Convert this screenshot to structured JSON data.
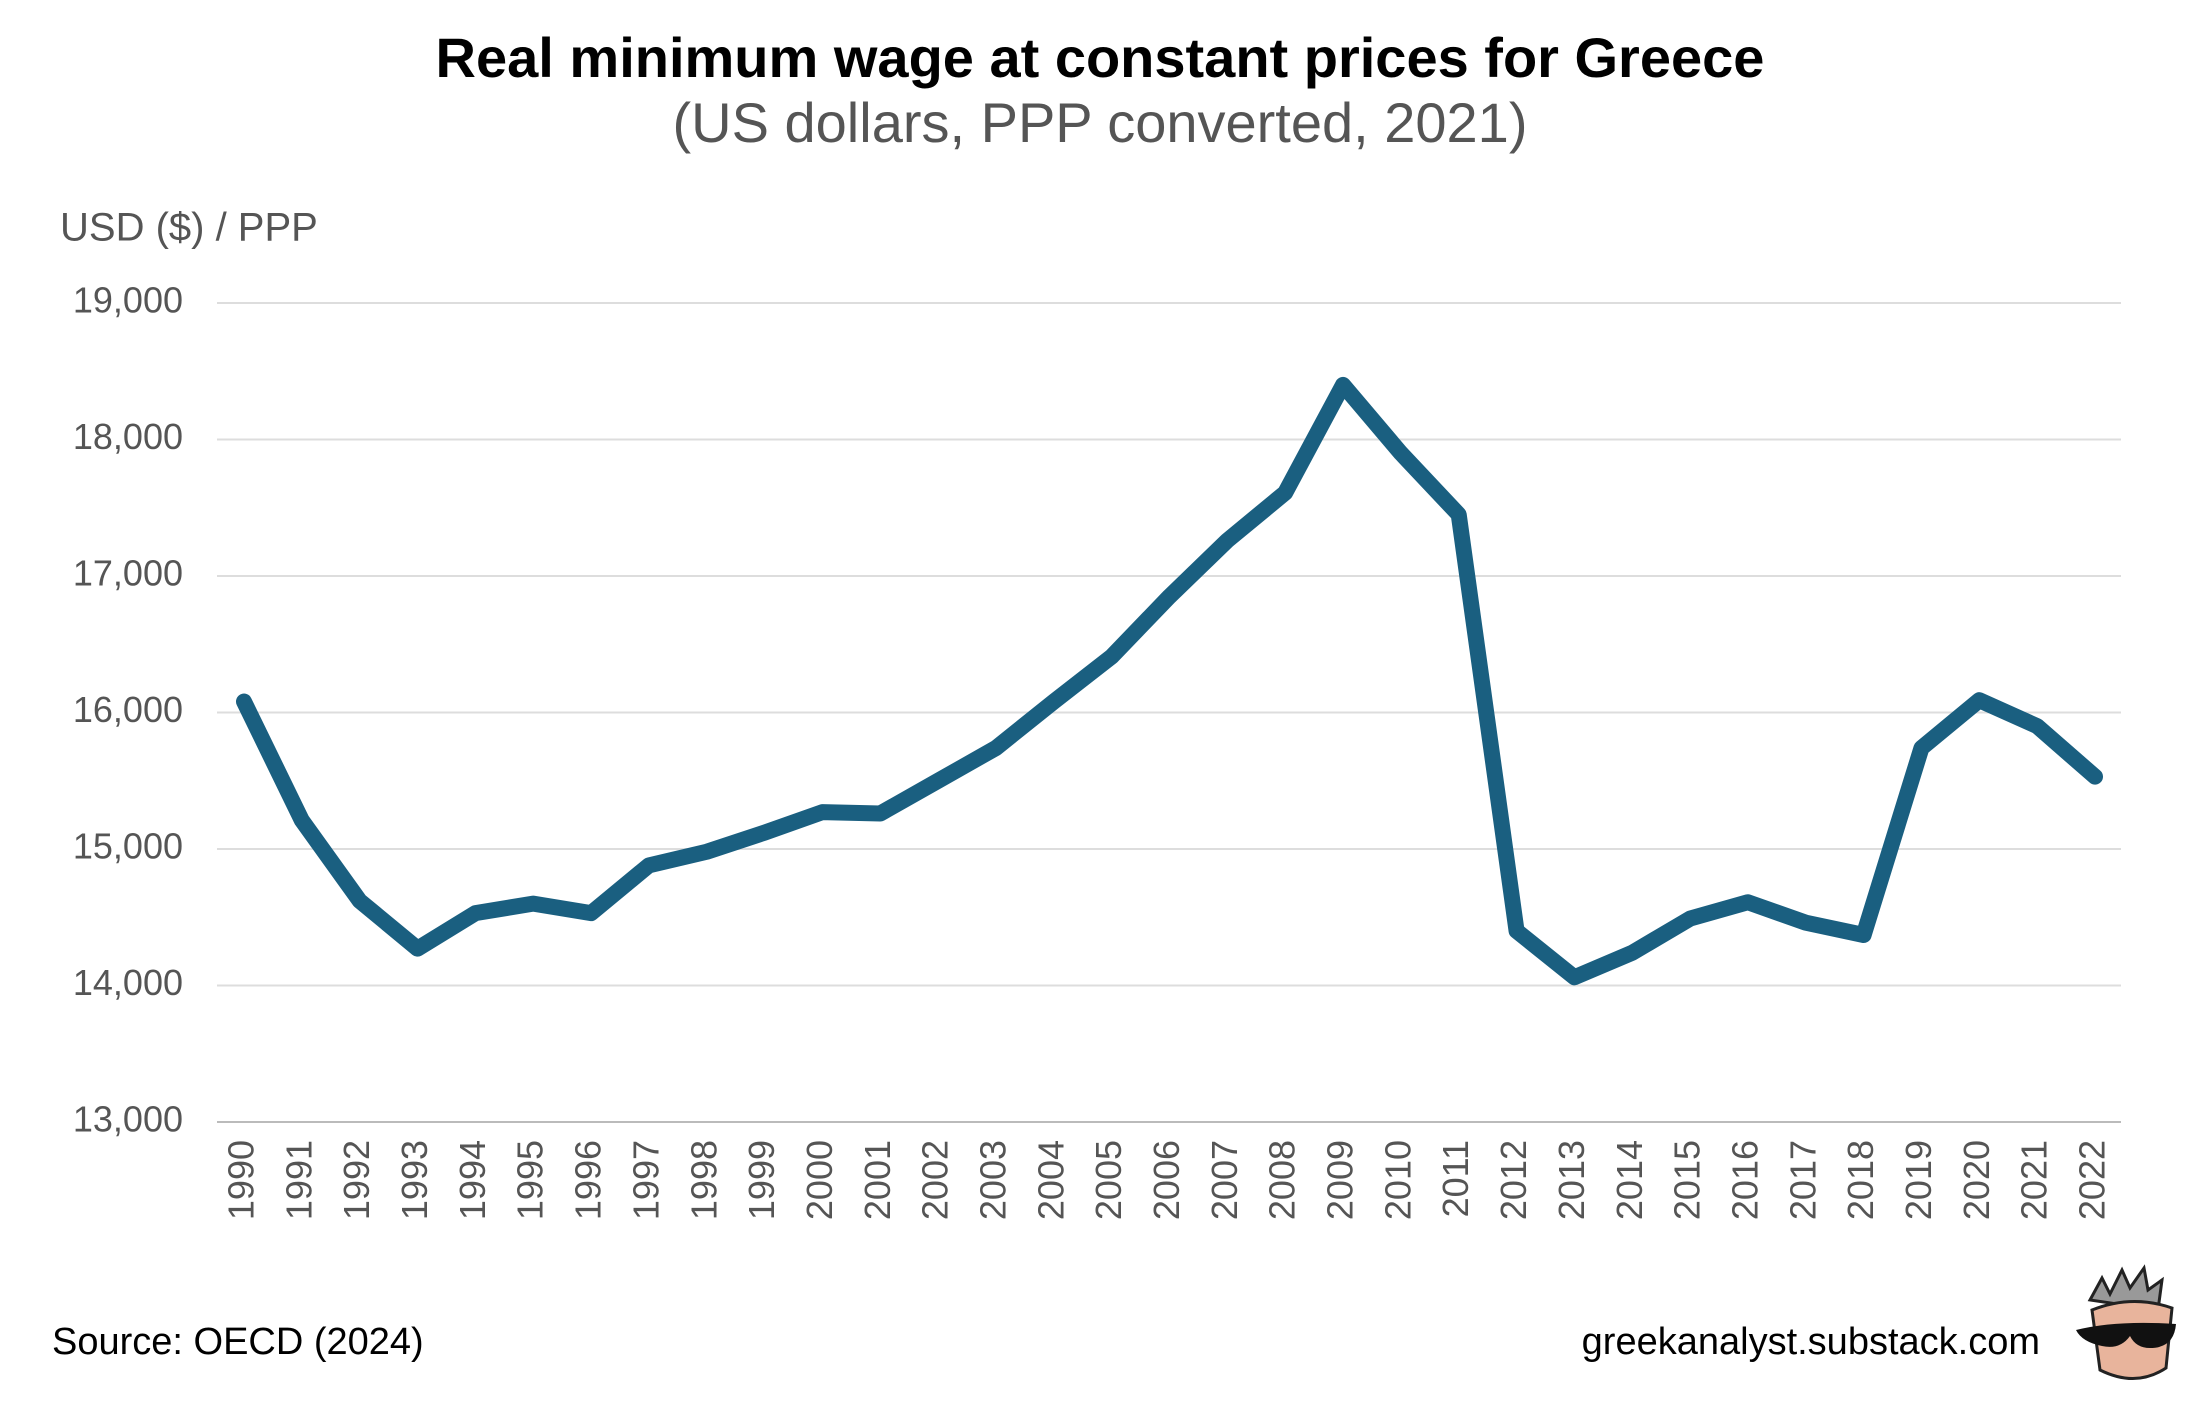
{
  "chart_data": {
    "type": "line",
    "title": "Real minimum wage at constant prices for Greece",
    "subtitle": "(US dollars, PPP converted, 2021)",
    "y_axis_label": "USD ($) / PPP",
    "source": "Source: OECD (2024)",
    "credit": "greekanalyst.substack.com",
    "categories": [
      "1990",
      "1991",
      "1992",
      "1993",
      "1994",
      "1995",
      "1996",
      "1997",
      "1998",
      "1999",
      "2000",
      "2001",
      "2002",
      "2003",
      "2004",
      "2005",
      "2006",
      "2007",
      "2008",
      "2009",
      "2010",
      "2011",
      "2012",
      "2013",
      "2014",
      "2015",
      "2016",
      "2017",
      "2018",
      "2019",
      "2020",
      "2021",
      "2022"
    ],
    "series": [
      {
        "name": "Real minimum wage",
        "color": "#1a5f80",
        "values": [
          16080,
          15210,
          14620,
          14270,
          14530,
          14600,
          14530,
          14880,
          14980,
          15120,
          15270,
          15260,
          15500,
          15740,
          16080,
          16410,
          16850,
          17260,
          17610,
          18400,
          17900,
          17450,
          14400,
          14060,
          14240,
          14490,
          14610,
          14460,
          14370,
          15740,
          16090,
          15900,
          15530
        ]
      }
    ],
    "ylim": [
      13000,
      19000
    ],
    "yticks": [
      {
        "value": 13000,
        "label": "13,000"
      },
      {
        "value": 14000,
        "label": "14,000"
      },
      {
        "value": 15000,
        "label": "15,000"
      },
      {
        "value": 16000,
        "label": "16,000"
      },
      {
        "value": 17000,
        "label": "17,000"
      },
      {
        "value": 18000,
        "label": "18,000"
      },
      {
        "value": 19000,
        "label": "19,000"
      }
    ],
    "grid": true
  }
}
